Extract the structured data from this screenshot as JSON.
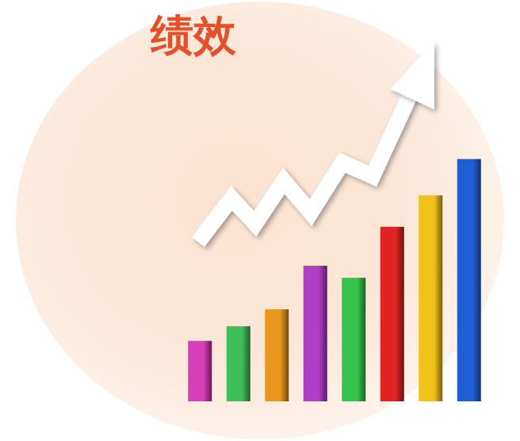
{
  "chart_data": {
    "type": "bar",
    "title": "绩效",
    "categories": [
      null,
      null,
      null,
      null,
      null,
      null,
      null,
      null
    ],
    "values": [
      25,
      31,
      38,
      56,
      51,
      72,
      85,
      100
    ],
    "colors": [
      "#d63fb6",
      "#3fbf5a",
      "#e8961e",
      "#b03fc8",
      "#35c24a",
      "#e02424",
      "#f0c21a",
      "#1f5fd6"
    ],
    "ylim": [
      0,
      110
    ],
    "tick_labels": false,
    "grid": false
  }
}
